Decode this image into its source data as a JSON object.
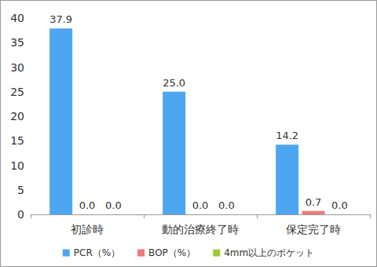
{
  "chart_data": {
    "type": "bar",
    "categories": [
      "初診時",
      "動的治療終了時",
      "保定完了時"
    ],
    "series": [
      {
        "name": "PCR（%）",
        "color": "#4da6f0",
        "values": [
          37.9,
          25.0,
          14.2
        ],
        "value_labels": [
          "37.9",
          "25.0",
          "14.2"
        ]
      },
      {
        "name": "BOP（%）",
        "color": "#f07878",
        "values": [
          0,
          0,
          0.7
        ],
        "value_labels": [
          "0.0",
          "0.0",
          "0.7"
        ]
      },
      {
        "name": "4mm以上のポケット",
        "color": "#99cc33",
        "values": [
          0,
          0,
          0
        ],
        "value_labels": [
          "0.0",
          "0.0",
          "0.0"
        ]
      }
    ],
    "ylim": [
      0,
      40
    ],
    "yticks": [
      0,
      5,
      10,
      15,
      20,
      25,
      30,
      35,
      40
    ],
    "grid": false,
    "legend": "bottom",
    "data_labels": true
  }
}
